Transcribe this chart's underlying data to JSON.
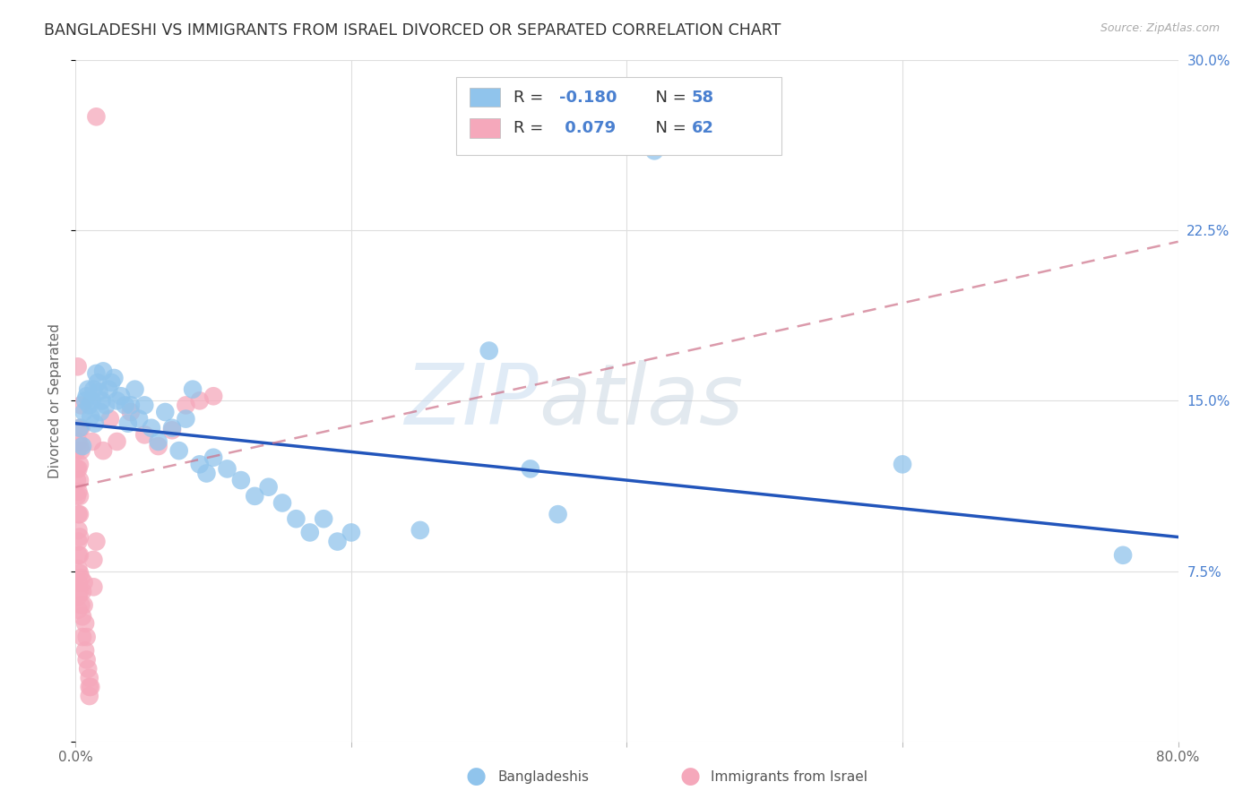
{
  "title": "BANGLADESHI VS IMMIGRANTS FROM ISRAEL DIVORCED OR SEPARATED CORRELATION CHART",
  "source": "Source: ZipAtlas.com",
  "ylabel": "Divorced or Separated",
  "watermark_part1": "ZIP",
  "watermark_part2": "atlas",
  "xlim": [
    0.0,
    0.8
  ],
  "ylim": [
    0.0,
    0.3
  ],
  "xticks": [
    0.0,
    0.2,
    0.4,
    0.6,
    0.8
  ],
  "xtick_labels": [
    "0.0%",
    "",
    "",
    "",
    "80.0%"
  ],
  "yticks": [
    0.0,
    0.075,
    0.15,
    0.225,
    0.3
  ],
  "ytick_labels": [
    "",
    "7.5%",
    "15.0%",
    "22.5%",
    "30.0%"
  ],
  "blue_color": "#90C4EC",
  "pink_color": "#F5A8BB",
  "trend_blue_color": "#2255BB",
  "trend_pink_color": "#CC7088",
  "blue_scatter": [
    [
      0.003,
      0.138
    ],
    [
      0.005,
      0.13
    ],
    [
      0.006,
      0.145
    ],
    [
      0.007,
      0.15
    ],
    [
      0.008,
      0.152
    ],
    [
      0.009,
      0.155
    ],
    [
      0.01,
      0.148
    ],
    [
      0.011,
      0.143
    ],
    [
      0.012,
      0.15
    ],
    [
      0.013,
      0.155
    ],
    [
      0.014,
      0.14
    ],
    [
      0.015,
      0.162
    ],
    [
      0.016,
      0.158
    ],
    [
      0.017,
      0.154
    ],
    [
      0.018,
      0.145
    ],
    [
      0.019,
      0.15
    ],
    [
      0.02,
      0.163
    ],
    [
      0.022,
      0.148
    ],
    [
      0.024,
      0.155
    ],
    [
      0.026,
      0.158
    ],
    [
      0.028,
      0.16
    ],
    [
      0.03,
      0.15
    ],
    [
      0.033,
      0.152
    ],
    [
      0.036,
      0.148
    ],
    [
      0.038,
      0.14
    ],
    [
      0.04,
      0.148
    ],
    [
      0.043,
      0.155
    ],
    [
      0.046,
      0.142
    ],
    [
      0.05,
      0.148
    ],
    [
      0.055,
      0.138
    ],
    [
      0.06,
      0.132
    ],
    [
      0.065,
      0.145
    ],
    [
      0.07,
      0.138
    ],
    [
      0.075,
      0.128
    ],
    [
      0.08,
      0.142
    ],
    [
      0.085,
      0.155
    ],
    [
      0.09,
      0.122
    ],
    [
      0.095,
      0.118
    ],
    [
      0.1,
      0.125
    ],
    [
      0.11,
      0.12
    ],
    [
      0.12,
      0.115
    ],
    [
      0.13,
      0.108
    ],
    [
      0.14,
      0.112
    ],
    [
      0.15,
      0.105
    ],
    [
      0.16,
      0.098
    ],
    [
      0.17,
      0.092
    ],
    [
      0.18,
      0.098
    ],
    [
      0.19,
      0.088
    ],
    [
      0.2,
      0.092
    ],
    [
      0.25,
      0.093
    ],
    [
      0.3,
      0.172
    ],
    [
      0.33,
      0.12
    ],
    [
      0.35,
      0.1
    ],
    [
      0.42,
      0.26
    ],
    [
      0.6,
      0.122
    ],
    [
      0.76,
      0.082
    ]
  ],
  "pink_scatter": [
    [
      0.001,
      0.115
    ],
    [
      0.001,
      0.12
    ],
    [
      0.001,
      0.128
    ],
    [
      0.001,
      0.108
    ],
    [
      0.0015,
      0.165
    ],
    [
      0.002,
      0.132
    ],
    [
      0.002,
      0.12
    ],
    [
      0.002,
      0.11
    ],
    [
      0.002,
      0.1
    ],
    [
      0.002,
      0.093
    ],
    [
      0.002,
      0.088
    ],
    [
      0.002,
      0.082
    ],
    [
      0.002,
      0.076
    ],
    [
      0.002,
      0.07
    ],
    [
      0.002,
      0.064
    ],
    [
      0.002,
      0.058
    ],
    [
      0.003,
      0.138
    ],
    [
      0.003,
      0.13
    ],
    [
      0.003,
      0.122
    ],
    [
      0.003,
      0.115
    ],
    [
      0.003,
      0.108
    ],
    [
      0.003,
      0.1
    ],
    [
      0.003,
      0.09
    ],
    [
      0.003,
      0.082
    ],
    [
      0.003,
      0.074
    ],
    [
      0.003,
      0.066
    ],
    [
      0.004,
      0.148
    ],
    [
      0.004,
      0.138
    ],
    [
      0.004,
      0.128
    ],
    [
      0.004,
      0.072
    ],
    [
      0.004,
      0.06
    ],
    [
      0.005,
      0.066
    ],
    [
      0.005,
      0.055
    ],
    [
      0.005,
      0.046
    ],
    [
      0.006,
      0.07
    ],
    [
      0.006,
      0.06
    ],
    [
      0.007,
      0.052
    ],
    [
      0.007,
      0.04
    ],
    [
      0.008,
      0.046
    ],
    [
      0.008,
      0.036
    ],
    [
      0.009,
      0.032
    ],
    [
      0.01,
      0.028
    ],
    [
      0.01,
      0.024
    ],
    [
      0.01,
      0.02
    ],
    [
      0.011,
      0.024
    ],
    [
      0.012,
      0.132
    ],
    [
      0.013,
      0.08
    ],
    [
      0.013,
      0.068
    ],
    [
      0.015,
      0.088
    ],
    [
      0.015,
      0.275
    ],
    [
      0.02,
      0.128
    ],
    [
      0.025,
      0.142
    ],
    [
      0.03,
      0.132
    ],
    [
      0.04,
      0.145
    ],
    [
      0.05,
      0.135
    ],
    [
      0.06,
      0.13
    ],
    [
      0.07,
      0.137
    ],
    [
      0.08,
      0.148
    ],
    [
      0.09,
      0.15
    ],
    [
      0.1,
      0.152
    ]
  ],
  "blue_trend_x": [
    0.0,
    0.8
  ],
  "blue_trend_y": [
    0.14,
    0.09
  ],
  "pink_trend_x": [
    0.0,
    0.8
  ],
  "pink_trend_y": [
    0.112,
    0.22
  ],
  "background_color": "#FFFFFF",
  "grid_color": "#DEDEDE",
  "title_fontsize": 12.5,
  "tick_fontsize": 11,
  "legend_fontsize": 13,
  "right_tick_color": "#4A80D0",
  "legend_r_color": "#333333",
  "legend_n_color": "#4A80D0"
}
